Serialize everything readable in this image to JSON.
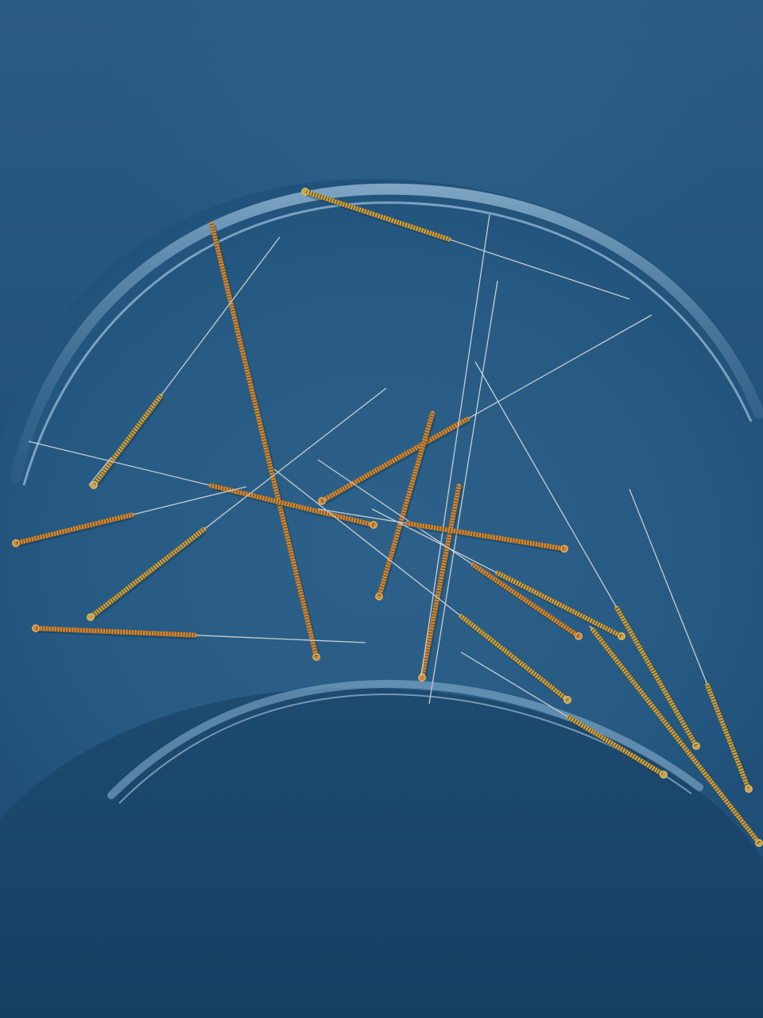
{
  "scene": {
    "subject": "acupuncture-needles-in-tray",
    "colors": {
      "tray_dark": "#173f62",
      "tray_mid": "#24557d",
      "tray_light": "#4f7ea6",
      "rim_highlight": "#9cc3e0",
      "copper": "#c98a3a",
      "copper_dark": "#8a5620",
      "gold": "#c9a24a",
      "gold_dark": "#7a6126",
      "steel": "#c8cdd2"
    }
  }
}
